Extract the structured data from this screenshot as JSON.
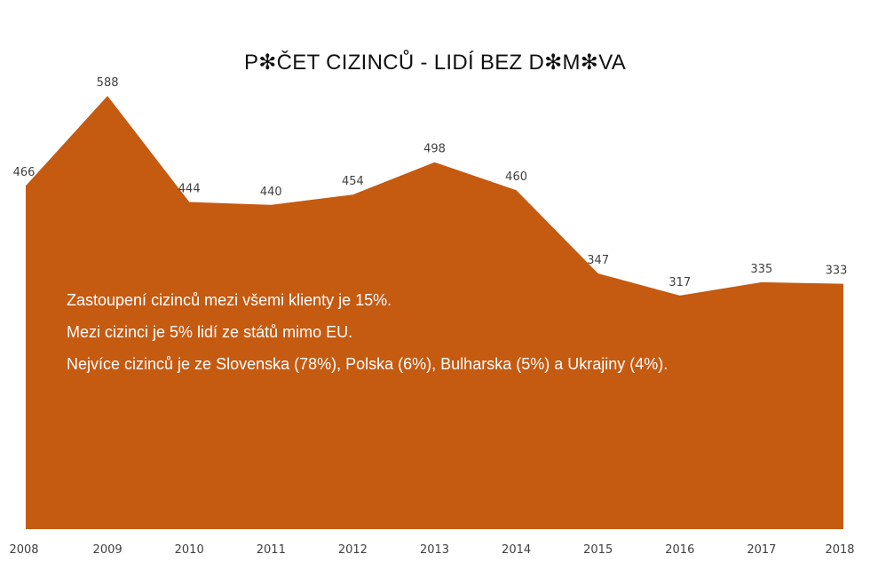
{
  "chart_data": {
    "type": "area",
    "title": "P✻ČET CIZINCŮ - LIDÍ BEZ D✻M✻VA",
    "categories": [
      "2008",
      "2009",
      "2010",
      "2011",
      "2012",
      "2013",
      "2014",
      "2015",
      "2016",
      "2017",
      "2018"
    ],
    "values": [
      466,
      588,
      444,
      440,
      454,
      498,
      460,
      347,
      317,
      335,
      333
    ],
    "data_labels": [
      "466",
      "588",
      "444",
      "440",
      "454",
      "498",
      "460",
      "347",
      "317",
      "335",
      "333"
    ],
    "ylim": [
      0,
      600
    ],
    "grid": false,
    "legend": "none",
    "fill_color": "#C55A11",
    "annotations": [
      "Zastoupení cizinců mezi všemi klienty je 15%.",
      "Mezi cizinci je 5% lidí ze států mimo EU.",
      "Nejvíce cizinců je ze Slovenska (78%), Polska (6%), Bulharska (5%) a Ukrajiny (4%)."
    ]
  }
}
